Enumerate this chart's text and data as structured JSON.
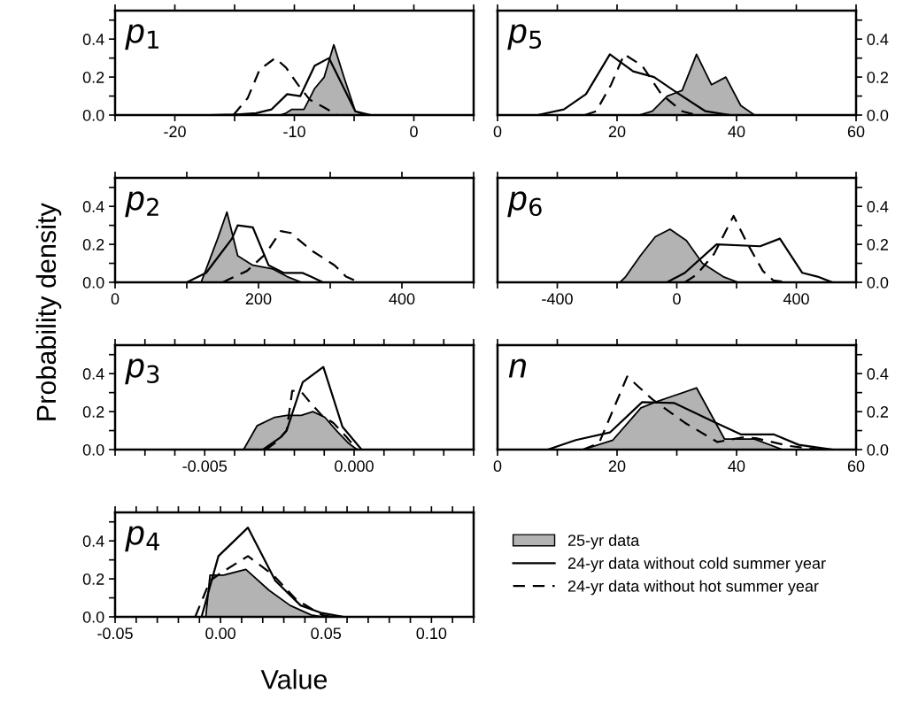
{
  "chart_data": [
    {
      "type": "line",
      "title": "p$_{1}$",
      "xlim": [
        -25,
        5
      ],
      "xticks": [
        -20,
        -10,
        0,
        {
          "value": -25,
          "label": null
        },
        {
          "value": -15,
          "label": null
        },
        {
          "value": -5,
          "label": null
        },
        {
          "value": 5,
          "label": null
        }
      ],
      "ylim": [
        0,
        0.55
      ],
      "yticks": [
        {
          "value": 0,
          "label": "0.0"
        },
        {
          "value": 0.2,
          "label": "0.2"
        },
        {
          "value": 0.4,
          "label": "0.4"
        },
        {
          "value": 0.1,
          "label": null
        },
        {
          "value": 0.3,
          "label": null
        },
        {
          "value": 0.5,
          "label": null
        }
      ],
      "series": [
        {
          "type": "area",
          "color": "#b3b3b3",
          "x": [
            -11.2,
            -10.7,
            -10.2,
            -9.2,
            -8.7,
            -8.3,
            -7.5,
            -6.7,
            -5.8,
            -4.9,
            -4.1
          ],
          "values": [
            0,
            0.01,
            0.03,
            0.03,
            0.09,
            0.14,
            0.2,
            0.37,
            0.19,
            0.02,
            0
          ]
        },
        {
          "type": "line",
          "color": "#000000",
          "line_style": "solid",
          "x": [
            -17.1,
            -15.1,
            -13.2,
            -11.9,
            -10.6,
            -9.5,
            -8.3,
            -7.1,
            -4.9,
            -3.6
          ],
          "values": [
            0,
            0.002,
            0.01,
            0.03,
            0.11,
            0.1,
            0.26,
            0.3,
            0.02,
            0
          ]
        },
        {
          "type": "line",
          "color": "#000000",
          "line_style": "dashed",
          "x": [
            -15.1,
            -13.9,
            -12.9,
            -11.6,
            -10.7,
            -9.7,
            -8.7,
            -7.5,
            -6.4
          ],
          "values": [
            0,
            0.09,
            0.24,
            0.3,
            0.25,
            0.16,
            0.08,
            0.04,
            0
          ]
        }
      ]
    },
    {
      "type": "line",
      "title": "p$_{5}$",
      "xlim": [
        0,
        60
      ],
      "xticks": [
        0,
        20,
        40,
        60,
        {
          "value": 10,
          "label": null
        },
        {
          "value": 30,
          "label": null
        },
        {
          "value": 50,
          "label": null
        }
      ],
      "y2lim": [
        0,
        0.55
      ],
      "y2ticks": [
        {
          "value": 0,
          "label": "0.0"
        },
        {
          "value": 0.2,
          "label": "0.2"
        },
        {
          "value": 0.4,
          "label": "0.4"
        },
        {
          "value": 0.1,
          "label": null
        },
        {
          "value": 0.3,
          "label": null
        },
        {
          "value": 0.5,
          "label": null
        }
      ],
      "series": [
        {
          "type": "area",
          "axis": "y2",
          "color": "#b3b3b3",
          "x": [
            23.7,
            25.9,
            28.4,
            30.9,
            33.3,
            35.8,
            38.2,
            40.7,
            43
          ],
          "values": [
            0,
            0.02,
            0.1,
            0.13,
            0.32,
            0.16,
            0.2,
            0.05,
            0
          ]
        },
        {
          "type": "line",
          "axis": "y2",
          "color": "#000000",
          "line_style": "solid",
          "x": [
            6.7,
            11.1,
            14.8,
            18.8,
            22.7,
            26.2,
            30.4,
            34.8,
            38.8
          ],
          "values": [
            0,
            0.03,
            0.11,
            0.32,
            0.23,
            0.2,
            0.11,
            0.02,
            0
          ]
        },
        {
          "type": "line",
          "axis": "y2",
          "color": "#000000",
          "line_style": "dashed",
          "x": [
            14.6,
            16.5,
            19,
            21.2,
            24.2,
            27.4,
            30.9,
            33.3
          ],
          "values": [
            0,
            0.02,
            0.16,
            0.32,
            0.26,
            0.11,
            0.02,
            0
          ]
        }
      ]
    },
    {
      "type": "line",
      "title": "p$_{2}$",
      "ylabel": "Probability density",
      "xlim": [
        0,
        500
      ],
      "xticks": [
        0,
        200,
        400,
        {
          "value": 100,
          "label": null
        },
        {
          "value": 300,
          "label": null
        },
        {
          "value": 500,
          "label": null
        }
      ],
      "ylim": [
        0,
        0.55
      ],
      "yticks": [
        {
          "value": 0,
          "label": "0.0"
        },
        {
          "value": 0.2,
          "label": "0.2"
        },
        {
          "value": 0.4,
          "label": "0.4"
        },
        {
          "value": 0.1,
          "label": null
        },
        {
          "value": 0.3,
          "label": null
        },
        {
          "value": 0.5,
          "label": null
        }
      ],
      "series": [
        {
          "type": "area",
          "color": "#b3b3b3",
          "x": [
            120,
            143,
            156,
            171,
            192,
            220,
            240,
            260
          ],
          "values": [
            0,
            0.23,
            0.37,
            0.14,
            0.09,
            0.07,
            0.03,
            0
          ]
        },
        {
          "type": "line",
          "color": "#000000",
          "line_style": "solid",
          "x": [
            100,
            127,
            163,
            171,
            192,
            214,
            235,
            261,
            273,
            290
          ],
          "values": [
            0,
            0.05,
            0.23,
            0.3,
            0.29,
            0.09,
            0.05,
            0.05,
            0.03,
            0
          ]
        },
        {
          "type": "line",
          "color": "#000000",
          "line_style": "dashed",
          "x": [
            150,
            184,
            210,
            231,
            245,
            273,
            306,
            322,
            340
          ],
          "values": [
            0,
            0.06,
            0.15,
            0.27,
            0.26,
            0.17,
            0.09,
            0.03,
            0
          ]
        }
      ]
    },
    {
      "type": "line",
      "title": "p$_{6}$",
      "xlim": [
        -600,
        600
      ],
      "xticks": [
        -400,
        0,
        400,
        {
          "value": -600,
          "label": null
        },
        {
          "value": -200,
          "label": null
        },
        {
          "value": 200,
          "label": null
        },
        {
          "value": 600,
          "label": null
        }
      ],
      "y2lim": [
        0,
        0.55
      ],
      "y2ticks": [
        {
          "value": 0,
          "label": "0.0"
        },
        {
          "value": 0.2,
          "label": "0.2"
        },
        {
          "value": 0.4,
          "label": "0.4"
        },
        {
          "value": 0.1,
          "label": null
        },
        {
          "value": 0.3,
          "label": null
        },
        {
          "value": 0.5,
          "label": null
        }
      ],
      "series": [
        {
          "type": "area",
          "axis": "y2",
          "color": "#b3b3b3",
          "x": [
            -190,
            -171,
            -122,
            -72,
            -23,
            32,
            86,
            155,
            205
          ],
          "values": [
            0,
            0.03,
            0.14,
            0.24,
            0.28,
            0.22,
            0.1,
            0.03,
            0
          ]
        },
        {
          "type": "line",
          "axis": "y2",
          "color": "#000000",
          "line_style": "solid",
          "x": [
            -33,
            27,
            133,
            279,
            345,
            420,
            471,
            520
          ],
          "values": [
            0,
            0.05,
            0.2,
            0.19,
            0.23,
            0.05,
            0.03,
            0
          ]
        },
        {
          "type": "line",
          "axis": "y2",
          "color": "#000000",
          "line_style": "dashed",
          "x": [
            27,
            66,
            125,
            190,
            234,
            288,
            323,
            372
          ],
          "values": [
            0,
            0.04,
            0.15,
            0.35,
            0.21,
            0.06,
            0.01,
            0
          ]
        }
      ]
    },
    {
      "type": "line",
      "title": "p$_{3}$",
      "xlim": [
        -0.008,
        0.004
      ],
      "xticks": [
        {
          "value": -0.005,
          "label": "-0.005"
        },
        {
          "value": 0,
          "label": "0.000"
        },
        {
          "value": -0.008,
          "label": null
        },
        {
          "value": -0.007,
          "label": null
        },
        {
          "value": -0.006,
          "label": null
        },
        {
          "value": -0.004,
          "label": null
        },
        {
          "value": -0.003,
          "label": null
        },
        {
          "value": -0.002,
          "label": null
        },
        {
          "value": -0.001,
          "label": null
        },
        {
          "value": 0.001,
          "label": null
        },
        {
          "value": 0.002,
          "label": null
        },
        {
          "value": 0.003,
          "label": null
        },
        {
          "value": 0.004,
          "label": null
        }
      ],
      "ylim": [
        0,
        0.55
      ],
      "yticks": [
        {
          "value": 0,
          "label": "0.0"
        },
        {
          "value": 0.2,
          "label": "0.2"
        },
        {
          "value": 0.4,
          "label": "0.4"
        },
        {
          "value": 0.1,
          "label": null
        },
        {
          "value": 0.3,
          "label": null
        },
        {
          "value": 0.5,
          "label": null
        }
      ],
      "series": [
        {
          "type": "area",
          "color": "#b3b3b3",
          "x": [
            -0.0037,
            -0.00325,
            -0.00266,
            -0.00226,
            -0.00177,
            -0.00138,
            -0.00098,
            -0.00059,
            -0.0002,
            0.0001
          ],
          "values": [
            0,
            0.125,
            0.17,
            0.18,
            0.18,
            0.2,
            0.17,
            0.1,
            0.035,
            0
          ]
        },
        {
          "type": "line",
          "color": "#000000",
          "line_style": "solid",
          "x": [
            -0.00305,
            -0.00246,
            -0.00226,
            -0.00182,
            -0.00172,
            -0.00103,
            -0.00039,
            0.00025
          ],
          "values": [
            0,
            0.065,
            0.1,
            0.31,
            0.355,
            0.435,
            0.12,
            0
          ]
        },
        {
          "type": "line",
          "color": "#000000",
          "line_style": "dashed",
          "x": [
            -0.00295,
            -0.00256,
            -0.00226,
            -0.00207,
            -0.00177,
            -0.00148,
            -0.00108,
            -0.00069,
            -0.00025,
            0.0001
          ],
          "values": [
            0,
            0.045,
            0.1,
            0.31,
            0.305,
            0.25,
            0.18,
            0.14,
            0.065,
            0
          ]
        }
      ]
    },
    {
      "type": "line",
      "title": "n",
      "xlim": [
        0,
        60
      ],
      "xticks": [
        0,
        20,
        40,
        60,
        {
          "value": 10,
          "label": null
        },
        {
          "value": 30,
          "label": null
        },
        {
          "value": 50,
          "label": null
        }
      ],
      "y2lim": [
        0,
        0.55
      ],
      "y2ticks": [
        {
          "value": 0,
          "label": "0.0"
        },
        {
          "value": 0.2,
          "label": "0.2"
        },
        {
          "value": 0.4,
          "label": "0.4"
        },
        {
          "value": 0.1,
          "label": null
        },
        {
          "value": 0.3,
          "label": null
        },
        {
          "value": 0.5,
          "label": null
        }
      ],
      "series": [
        {
          "type": "area",
          "axis": "y2",
          "color": "#b3b3b3",
          "x": [
            14.3,
            19.3,
            24,
            26.4,
            33.3,
            38,
            43,
            47.7
          ],
          "values": [
            0,
            0.05,
            0.22,
            0.25,
            0.325,
            0.055,
            0.055,
            0
          ]
        },
        {
          "type": "line",
          "axis": "y2",
          "color": "#000000",
          "line_style": "solid",
          "x": [
            8.4,
            13.1,
            18.8,
            24.2,
            29.6,
            36.3,
            40.7,
            46.2,
            50.4,
            56
          ],
          "values": [
            0,
            0.05,
            0.09,
            0.25,
            0.245,
            0.145,
            0.08,
            0.08,
            0.025,
            0
          ]
        },
        {
          "type": "line",
          "axis": "y2",
          "color": "#000000",
          "line_style": "dashed",
          "x": [
            14.3,
            17,
            21.7,
            25.9,
            31.4,
            36.8,
            41.2,
            43.2,
            48.6,
            54
          ],
          "values": [
            0,
            0.035,
            0.385,
            0.265,
            0.14,
            0.04,
            0.065,
            0.06,
            0.02,
            0
          ]
        }
      ]
    },
    {
      "type": "line",
      "title": "p$_{4}$",
      "xlabel": "Value",
      "legend": "right",
      "xlim": [
        -0.05,
        0.12
      ],
      "xticks": [
        {
          "value": -0.05,
          "label": "-0.05"
        },
        {
          "value": 0,
          "label": "0.00"
        },
        {
          "value": 0.05,
          "label": "0.05"
        },
        {
          "value": 0.1,
          "label": "0.10"
        },
        {
          "value": -0.04,
          "label": null
        },
        {
          "value": -0.03,
          "label": null
        },
        {
          "value": -0.02,
          "label": null
        },
        {
          "value": -0.01,
          "label": null
        },
        {
          "value": 0.01,
          "label": null
        },
        {
          "value": 0.02,
          "label": null
        },
        {
          "value": 0.03,
          "label": null
        },
        {
          "value": 0.04,
          "label": null
        },
        {
          "value": 0.06,
          "label": null
        },
        {
          "value": 0.07,
          "label": null
        },
        {
          "value": 0.08,
          "label": null
        },
        {
          "value": 0.09,
          "label": null
        },
        {
          "value": 0.11,
          "label": null
        },
        {
          "value": 0.12,
          "label": null
        }
      ],
      "ylim": [
        0,
        0.55
      ],
      "yticks": [
        {
          "value": 0,
          "label": "0.0"
        },
        {
          "value": 0.2,
          "label": "0.2"
        },
        {
          "value": 0.4,
          "label": "0.4"
        },
        {
          "value": 0.1,
          "label": null
        },
        {
          "value": 0.3,
          "label": null
        },
        {
          "value": 0.5,
          "label": null
        }
      ],
      "series": [
        {
          "type": "area",
          "name": "25-yr data",
          "color": "#b3b3b3",
          "x": [
            -0.007,
            -0.005,
            0.0015,
            0.012,
            0.023,
            0.033,
            0.043,
            0.048
          ],
          "values": [
            0,
            0.22,
            0.22,
            0.25,
            0.14,
            0.06,
            0.01,
            0
          ]
        },
        {
          "type": "line",
          "name": "24-yr data without cold summer year",
          "color": "#000000",
          "line_style": "solid",
          "x": [
            -0.045,
            -0.009,
            -0.006,
            -0.001,
            0.013,
            0.026,
            0.038,
            0.048,
            0.058
          ],
          "values": [
            0,
            0,
            0.12,
            0.32,
            0.47,
            0.19,
            0.06,
            0.02,
            0
          ]
        },
        {
          "type": "line",
          "name": "24-yr data without hot summer year",
          "color": "#000000",
          "line_style": "dashed",
          "x": [
            -0.04,
            -0.012,
            -0.005,
            0,
            0.013,
            0.025,
            0.036,
            0.048,
            0.053
          ],
          "values": [
            0,
            0,
            0.19,
            0.23,
            0.32,
            0.22,
            0.09,
            0.01,
            0
          ]
        }
      ]
    }
  ]
}
